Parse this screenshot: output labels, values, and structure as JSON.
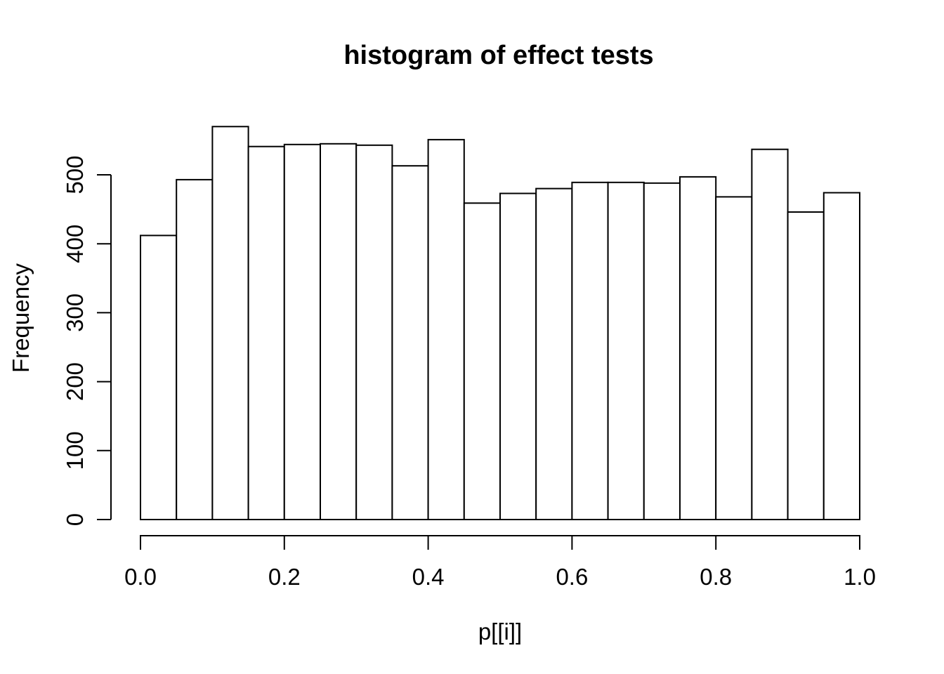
{
  "chart_data": {
    "type": "bar",
    "subtype": "histogram",
    "title": "histogram of effect tests",
    "xlabel": "p[[i]]",
    "ylabel": "Frequency",
    "bin_edges": [
      0.0,
      0.05,
      0.1,
      0.15,
      0.2,
      0.25,
      0.3,
      0.35,
      0.4,
      0.45,
      0.5,
      0.55,
      0.6,
      0.65,
      0.7,
      0.75,
      0.8,
      0.85,
      0.9,
      0.95,
      1.0
    ],
    "values": [
      412,
      493,
      570,
      541,
      544,
      545,
      543,
      513,
      551,
      459,
      473,
      480,
      489,
      489,
      488,
      497,
      468,
      537,
      446,
      474
    ],
    "x_ticks": {
      "values": [
        0.0,
        0.2,
        0.4,
        0.6,
        0.8,
        1.0
      ],
      "labels": [
        "0.0",
        "0.2",
        "0.4",
        "0.6",
        "0.8",
        "1.0"
      ]
    },
    "y_ticks": {
      "values": [
        0,
        100,
        200,
        300,
        400,
        500
      ],
      "labels": [
        "0",
        "100",
        "200",
        "300",
        "400",
        "500"
      ]
    },
    "xlim": [
      0,
      1
    ],
    "ylim": [
      0,
      573
    ],
    "grid": false,
    "legend_position": "none",
    "style": {
      "background": "#ffffff",
      "bar_fill": "#ffffff",
      "bar_stroke": "#000000",
      "axis_color": "#000000",
      "text_color": "#000000"
    }
  }
}
